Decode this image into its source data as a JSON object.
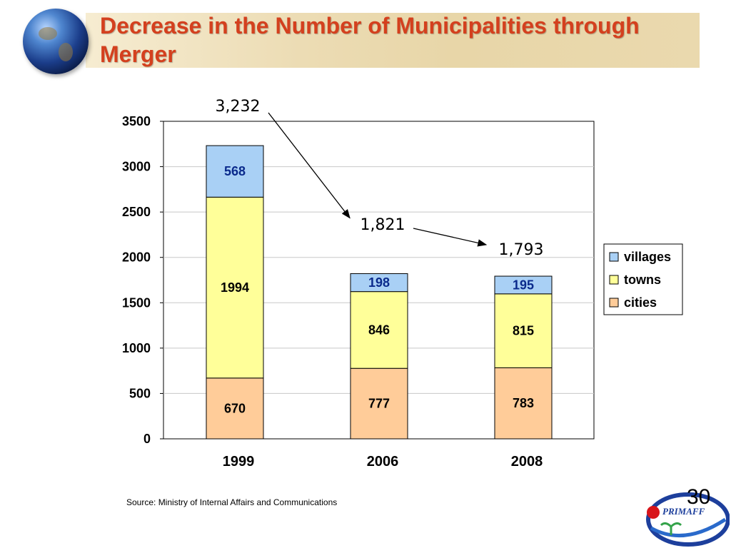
{
  "slide": {
    "title": "Decrease in the Number of Municipalities through Merger",
    "source": "Source: Ministry of Internal Affairs and Communications",
    "page_number": "30",
    "logo_text": "PRIMAFF"
  },
  "colors": {
    "title": "#d4401e",
    "villages": "#a9d0f5",
    "towns": "#ffff99",
    "cities": "#ffcc99"
  },
  "chart_data": {
    "type": "bar",
    "stacked": true,
    "categories": [
      "1999",
      "2006",
      "2008"
    ],
    "series": [
      {
        "name": "cities",
        "values": [
          670,
          777,
          783
        ]
      },
      {
        "name": "towns",
        "values": [
          1994,
          846,
          815
        ]
      },
      {
        "name": "villages",
        "values": [
          568,
          198,
          195
        ]
      }
    ],
    "totals": [
      "3,232",
      "1,821",
      "1,793"
    ],
    "ylim": [
      0,
      3500
    ],
    "yticks": [
      0,
      500,
      1000,
      1500,
      2000,
      2500,
      3000,
      3500
    ],
    "grid": true,
    "legend": "right",
    "legend_order": [
      "villages",
      "towns",
      "cities"
    ],
    "xlabel": "",
    "ylabel": ""
  }
}
